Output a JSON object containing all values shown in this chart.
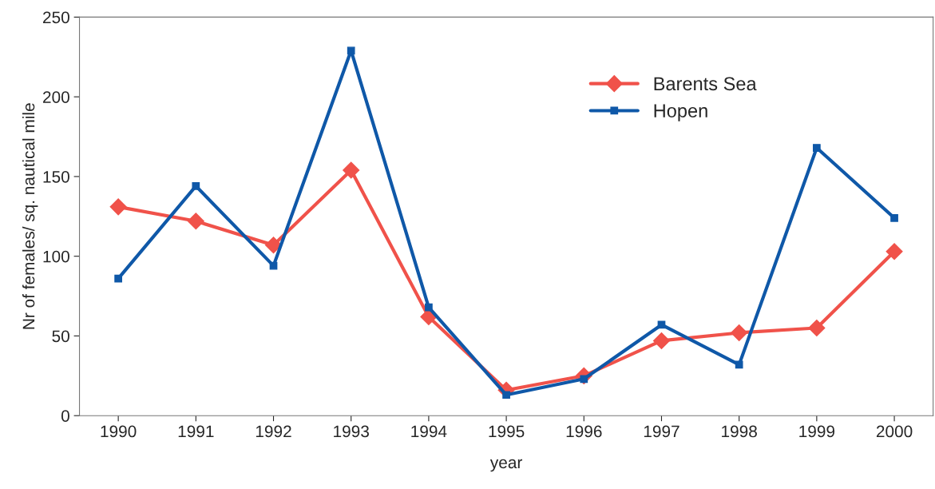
{
  "chart_data": {
    "type": "line",
    "xlabel": "year",
    "ylabel": "Nr of females/ sq. nautical mile",
    "categories": [
      "1990",
      "1991",
      "1992",
      "1993",
      "1994",
      "1995",
      "1996",
      "1997",
      "1998",
      "1999",
      "2000"
    ],
    "series": [
      {
        "name": "Barents Sea",
        "color": "#f0524a",
        "marker": "diamond",
        "values": [
          131,
          122,
          107,
          154,
          62,
          16,
          25,
          47,
          52,
          55,
          103
        ]
      },
      {
        "name": "Hopen",
        "color": "#0f58a8",
        "marker": "square",
        "values": [
          86,
          144,
          94,
          229,
          68,
          13,
          23,
          57,
          32,
          168,
          124
        ]
      }
    ],
    "ylim": [
      0,
      250
    ],
    "yticks": [
      0,
      50,
      100,
      150,
      200,
      250
    ],
    "grid": false,
    "legend": "top right",
    "line_style": "solid"
  }
}
